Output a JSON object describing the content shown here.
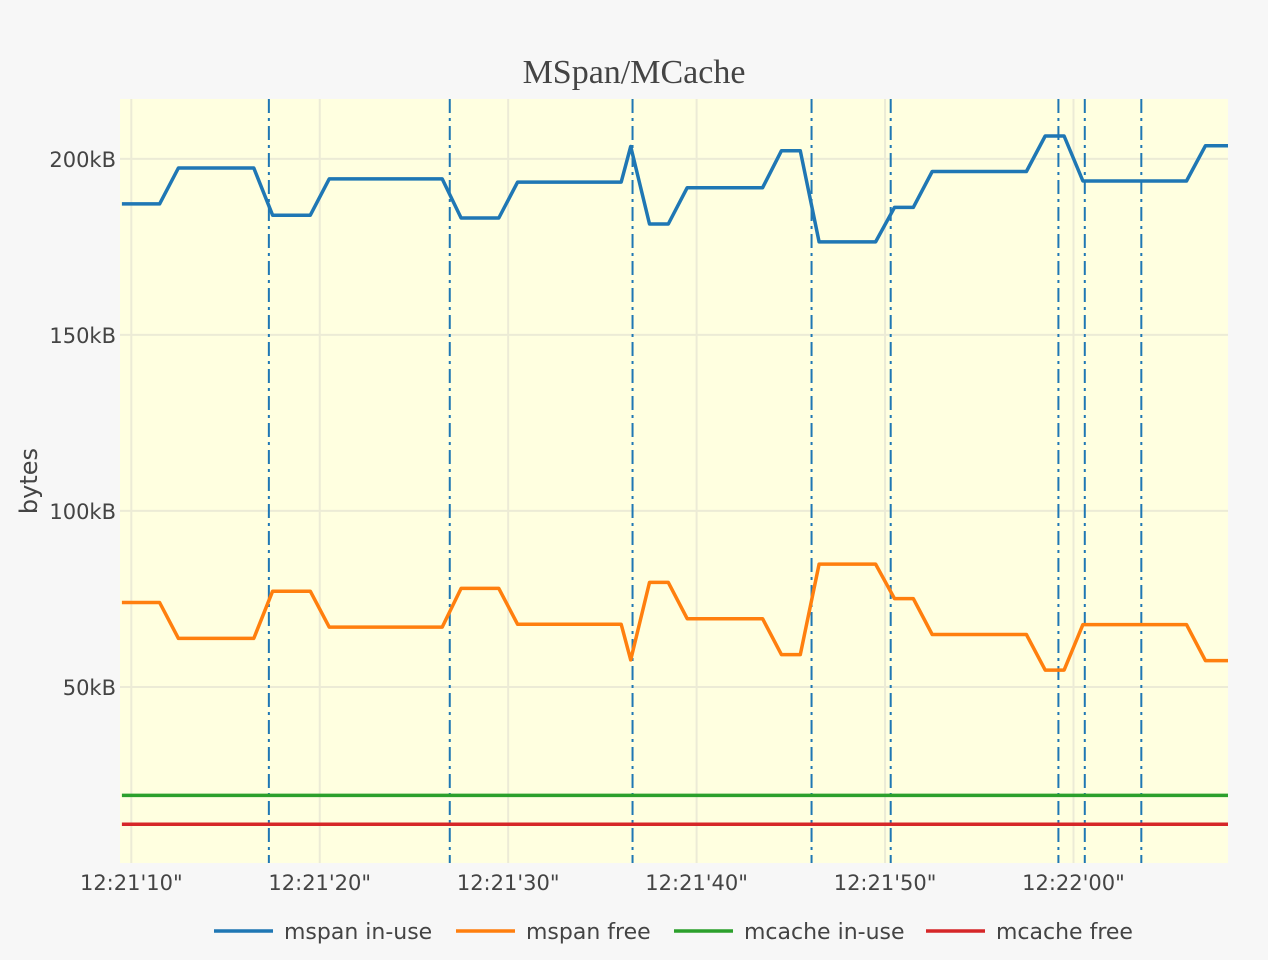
{
  "chart_data": {
    "type": "line",
    "title": "MSpan/MCache",
    "xlabel": "",
    "ylabel": "bytes",
    "xlim": [
      "12:21:09.4",
      "12:22:08.2"
    ],
    "ylim": [
      0,
      217000
    ],
    "x_ticks": [
      {
        "t": "12:21:10",
        "label": "12:21'10\""
      },
      {
        "t": "12:21:20",
        "label": "12:21'20\""
      },
      {
        "t": "12:21:30",
        "label": "12:21'30\""
      },
      {
        "t": "12:21:40",
        "label": "12:21'40\""
      },
      {
        "t": "12:21:50",
        "label": "12:21'50\""
      },
      {
        "t": "12:22:00",
        "label": "12:22'00\""
      }
    ],
    "y_ticks": [
      {
        "v": 50000,
        "label": "50kB"
      },
      {
        "v": 100000,
        "label": "100kB"
      },
      {
        "v": 150000,
        "label": "150kB"
      },
      {
        "v": 200000,
        "label": "200kB"
      }
    ],
    "vlines": [
      "12:21:17.3",
      "12:21:26.9",
      "12:21:36.6",
      "12:21:46.1",
      "12:21:50.3",
      "12:21:59.2",
      "12:22:00.6",
      "12:22:03.6"
    ],
    "grid": true,
    "legend_position": "bottom",
    "plot_bg": "#ffffe0",
    "paper_bg": "#f7f7f7",
    "grid_color": "#ecebd6",
    "vline_color": "#1f77b4",
    "series": [
      {
        "name": "mspan in-use",
        "color": "#1f77b4",
        "points": [
          [
            "12:21:09.5",
            187200
          ],
          [
            "12:21:11.5",
            187200
          ],
          [
            "12:21:12.5",
            197400
          ],
          [
            "12:21:16.5",
            197400
          ],
          [
            "12:21:17.5",
            184000
          ],
          [
            "12:21:19.5",
            184000
          ],
          [
            "12:21:20.5",
            194300
          ],
          [
            "12:21:26.5",
            194300
          ],
          [
            "12:21:27.5",
            183200
          ],
          [
            "12:21:29.5",
            183200
          ],
          [
            "12:21:30.5",
            193400
          ],
          [
            "12:21:36.0",
            193400
          ],
          [
            "12:21:36.5",
            203500
          ],
          [
            "12:21:37.5",
            181500
          ],
          [
            "12:21:38.5",
            181500
          ],
          [
            "12:21:39.5",
            191800
          ],
          [
            "12:21:43.5",
            191800
          ],
          [
            "12:21:44.5",
            202300
          ],
          [
            "12:21:45.5",
            202300
          ],
          [
            "12:21:46.5",
            176400
          ],
          [
            "12:21:49.5",
            176400
          ],
          [
            "12:21:50.5",
            186200
          ],
          [
            "12:21:51.5",
            186200
          ],
          [
            "12:21:52.5",
            196400
          ],
          [
            "12:21:57.5",
            196400
          ],
          [
            "12:21:58.5",
            206500
          ],
          [
            "12:21:59.5",
            206500
          ],
          [
            "12:22:00.5",
            193700
          ],
          [
            "12:22:06.0",
            193700
          ],
          [
            "12:22:07.0",
            203700
          ],
          [
            "12:22:08.2",
            203700
          ]
        ]
      },
      {
        "name": "mspan free",
        "color": "#ff7f0e",
        "points": [
          [
            "12:21:09.5",
            74000
          ],
          [
            "12:21:11.5",
            74000
          ],
          [
            "12:21:12.5",
            63800
          ],
          [
            "12:21:16.5",
            63800
          ],
          [
            "12:21:17.5",
            77200
          ],
          [
            "12:21:19.5",
            77200
          ],
          [
            "12:21:20.5",
            67000
          ],
          [
            "12:21:26.5",
            67000
          ],
          [
            "12:21:27.5",
            78000
          ],
          [
            "12:21:29.5",
            78000
          ],
          [
            "12:21:30.5",
            67800
          ],
          [
            "12:21:36.0",
            67800
          ],
          [
            "12:21:36.5",
            57700
          ],
          [
            "12:21:37.5",
            79700
          ],
          [
            "12:21:38.5",
            79700
          ],
          [
            "12:21:39.5",
            69400
          ],
          [
            "12:21:43.5",
            69400
          ],
          [
            "12:21:44.5",
            59200
          ],
          [
            "12:21:45.5",
            59200
          ],
          [
            "12:21:46.5",
            84900
          ],
          [
            "12:21:49.5",
            84900
          ],
          [
            "12:21:50.5",
            75100
          ],
          [
            "12:21:51.5",
            75100
          ],
          [
            "12:21:52.5",
            64900
          ],
          [
            "12:21:57.5",
            64900
          ],
          [
            "12:21:58.5",
            54800
          ],
          [
            "12:21:59.5",
            54800
          ],
          [
            "12:22:00.5",
            67700
          ],
          [
            "12:22:06.0",
            67700
          ],
          [
            "12:22:07.0",
            57500
          ],
          [
            "12:22:08.2",
            57500
          ]
        ]
      },
      {
        "name": "mcache in-use",
        "color": "#2ca02c",
        "points": [
          [
            "12:21:09.5",
            19200
          ],
          [
            "12:22:08.2",
            19200
          ]
        ]
      },
      {
        "name": "mcache free",
        "color": "#d62728",
        "points": [
          [
            "12:21:09.5",
            11000
          ],
          [
            "12:22:08.2",
            11000
          ]
        ]
      }
    ]
  }
}
